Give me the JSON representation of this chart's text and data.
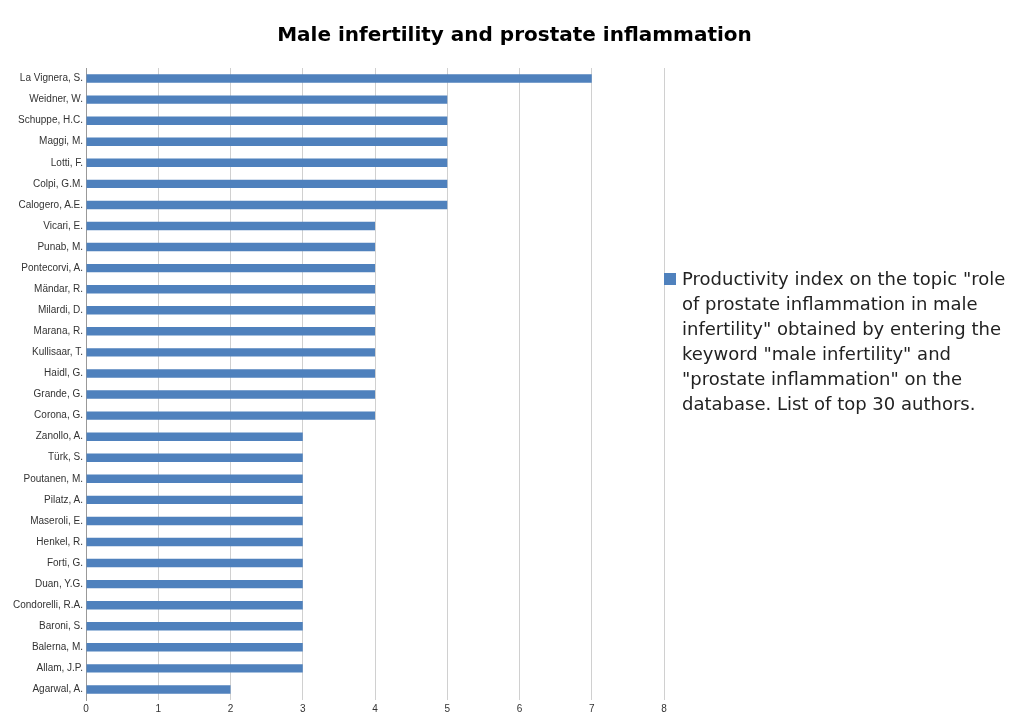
{
  "chart_data": {
    "type": "bar",
    "orientation": "horizontal",
    "title": "Male infertility and prostate inflammation",
    "categories": [
      "La Vignera, S.",
      "Weidner, W.",
      "Schuppe, H.C.",
      "Maggi, M.",
      "Lotti, F.",
      "Colpi, G.M.",
      "Calogero, A.E.",
      "Vicari, E.",
      "Punab, M.",
      "Pontecorvi, A.",
      "Mändar, R.",
      "Milardi, D.",
      "Marana, R.",
      "Kullisaar, T.",
      "Haidl, G.",
      "Grande, G.",
      "Corona, G.",
      "Zanollo, A.",
      "Türk, S.",
      "Poutanen, M.",
      "Pilatz, A.",
      "Maseroli, E.",
      "Henkel, R.",
      "Forti, G.",
      "Duan, Y.G.",
      "Condorelli, R.A.",
      "Baroni, S.",
      "Balerna, M.",
      "Allam, J.P.",
      "Agarwal, A."
    ],
    "series": [
      {
        "name": "Productivity index on the topic \"role of prostate inflammation in male infertility\" obtained by entering the keyword \"male infertility\" and \"prostate inflammation\" on the database. List of top 30 authors.",
        "color": "#4f81bd",
        "values": [
          7,
          5,
          5,
          5,
          5,
          5,
          5,
          4,
          4,
          4,
          4,
          4,
          4,
          4,
          4,
          4,
          4,
          3,
          3,
          3,
          3,
          3,
          3,
          3,
          3,
          3,
          3,
          3,
          3,
          2
        ]
      }
    ],
    "xlim": [
      0,
      8
    ],
    "xticks": [
      0,
      1,
      2,
      3,
      4,
      5,
      6,
      7,
      8
    ],
    "grid": "x",
    "legend": "right"
  }
}
